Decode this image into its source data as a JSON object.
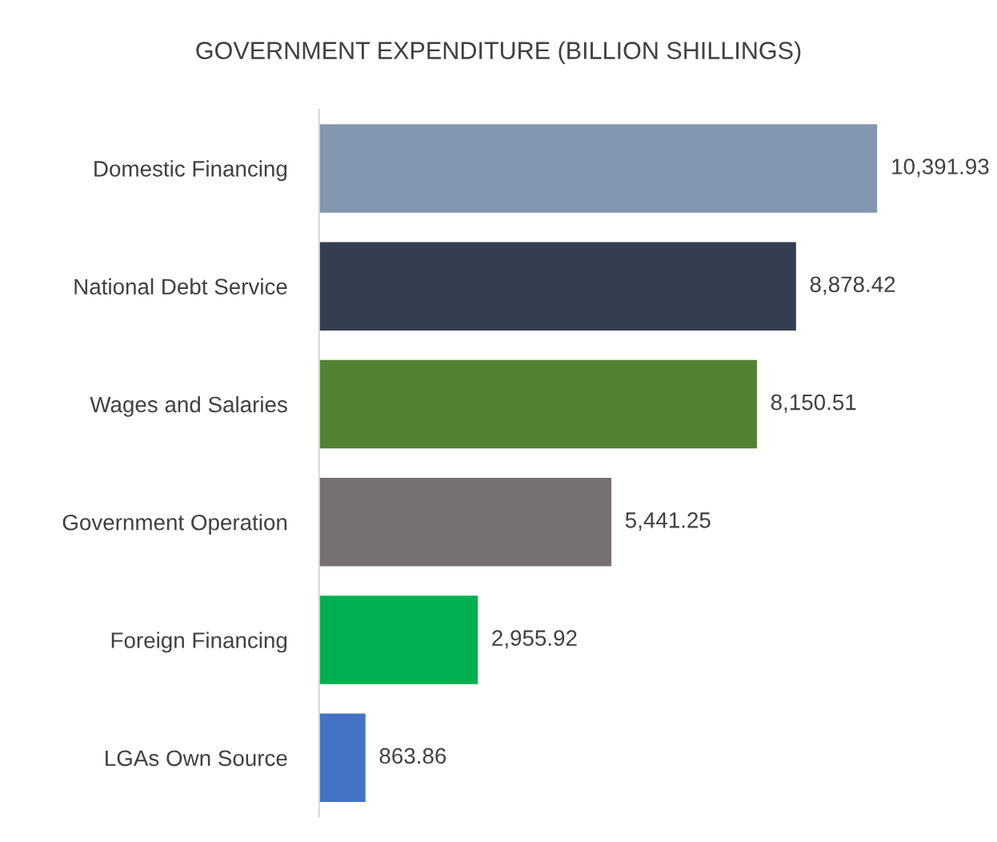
{
  "chart_data": {
    "type": "bar",
    "orientation": "horizontal",
    "title": "GOVERNMENT EXPENDITURE (BILLION SHILLINGS)",
    "categories": [
      "Domestic Financing",
      "National Debt Service",
      "Wages and Salaries",
      "Government Operation",
      "Foreign Financing",
      "LGAs Own Source"
    ],
    "values": [
      10391.93,
      8878.42,
      8150.51,
      5441.25,
      2955.92,
      863.86
    ],
    "colors": [
      "#8497b0",
      "#333f50",
      "#548235",
      "#767171",
      "#00b050",
      "#4472c4"
    ],
    "value_labels": [
      "10,391.93",
      "8,878.42",
      "8,150.51",
      "5,441.25",
      "2,955.92",
      "863.86"
    ],
    "grid": false,
    "legend": false
  }
}
